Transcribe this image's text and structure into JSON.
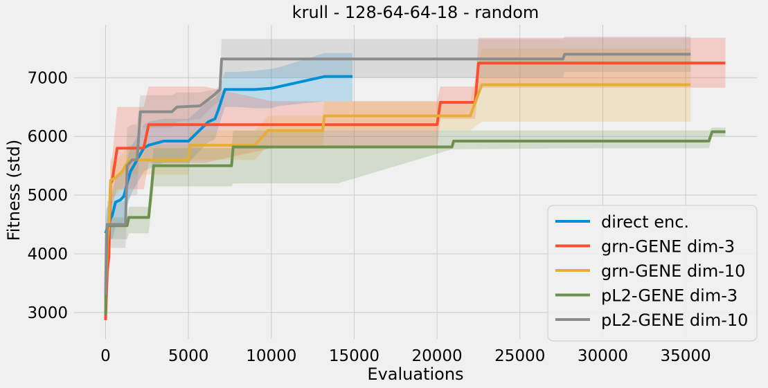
{
  "chart_data": {
    "type": "line",
    "title": "krull - 128-64-64-18 - random",
    "xlabel": "Evaluations",
    "ylabel": "Fitness (std)",
    "xlim": [
      -1900,
      39300
    ],
    "ylim": [
      2550,
      7900
    ],
    "xticks": [
      0,
      5000,
      10000,
      15000,
      20000,
      25000,
      30000,
      35000
    ],
    "yticks": [
      3000,
      4000,
      5000,
      6000,
      7000
    ],
    "grid": true,
    "legend_position": "lower-right",
    "series": [
      {
        "name": "direct enc.",
        "color": "#008fd5",
        "x": [
          0,
          50,
          100,
          200,
          300,
          400,
          600,
          900,
          1100,
          1300,
          1500,
          2300,
          2600,
          3500,
          5000,
          6200,
          6600,
          6800,
          7200,
          8000,
          9000,
          10000,
          10500,
          13200,
          14900
        ],
        "y": [
          4350,
          4400,
          4450,
          4500,
          4600,
          4650,
          4880,
          4920,
          4980,
          5200,
          5400,
          5800,
          5850,
          5920,
          5920,
          6250,
          6300,
          6450,
          6800,
          6800,
          6800,
          6820,
          6850,
          7020,
          7020
        ],
        "band_upper": [
          4600,
          4750,
          4800,
          4850,
          4950,
          5050,
          5300,
          5350,
          5400,
          5600,
          5800,
          6200,
          6250,
          6300,
          6300,
          6600,
          6650,
          6750,
          7100,
          7100,
          7120,
          7150,
          7180,
          7420,
          7420
        ],
        "band_lower": [
          4100,
          4050,
          4100,
          4150,
          4250,
          4250,
          4450,
          4500,
          4550,
          4800,
          5000,
          5400,
          5450,
          5550,
          5550,
          5900,
          5950,
          6150,
          6500,
          6500,
          6480,
          6480,
          6520,
          6600,
          6600
        ]
      },
      {
        "name": "grn-GENE dim-3",
        "color": "#fc4f30",
        "x": [
          0,
          100,
          200,
          300,
          400,
          700,
          1200,
          2300,
          2600,
          4000,
          6000,
          10000,
          15000,
          20000,
          20200,
          22300,
          22500,
          30000,
          37400
        ],
        "y": [
          2870,
          3700,
          3950,
          5200,
          5250,
          5800,
          5800,
          5800,
          6200,
          6200,
          6200,
          6200,
          6200,
          6200,
          6580,
          6580,
          7250,
          7250,
          7250
        ],
        "band_upper": [
          3000,
          4100,
          4300,
          5600,
          5650,
          6500,
          6500,
          6500,
          6850,
          6850,
          6850,
          6600,
          6600,
          6600,
          6850,
          6850,
          7680,
          7680,
          7680
        ],
        "band_lower": [
          2750,
          3300,
          3600,
          4800,
          4850,
          5100,
          5100,
          5100,
          5550,
          5550,
          5550,
          5800,
          5800,
          5800,
          6300,
          6300,
          6830,
          6830,
          6830
        ]
      },
      {
        "name": "grn-GENE dim-10",
        "color": "#e5ae38",
        "x": [
          0,
          100,
          200,
          300,
          600,
          1000,
          1400,
          2000,
          5000,
          5100,
          9000,
          9800,
          13100,
          13200,
          22000,
          22700,
          30000,
          35300
        ],
        "y": [
          3200,
          4200,
          4500,
          5250,
          5300,
          5400,
          5600,
          5600,
          5600,
          5850,
          5850,
          6100,
          6100,
          6350,
          6350,
          6880,
          6880,
          6880
        ],
        "band_upper": [
          3450,
          4550,
          4850,
          5550,
          5600,
          5700,
          5850,
          5850,
          5850,
          6100,
          6100,
          6350,
          6350,
          6600,
          6600,
          7500,
          7500,
          7500
        ],
        "band_lower": [
          2950,
          3850,
          4150,
          4950,
          5000,
          5100,
          5350,
          5350,
          5350,
          5600,
          5600,
          5850,
          5850,
          6100,
          6100,
          6250,
          6250,
          6250
        ]
      },
      {
        "name": "pL2-GENE dim-3",
        "color": "#6d904f",
        "x": [
          0,
          50,
          100,
          1300,
          1400,
          2600,
          2800,
          2900,
          7600,
          7700,
          14000,
          20900,
          21000,
          30000,
          36400,
          36600,
          37400
        ],
        "y": [
          2950,
          4000,
          4480,
          4480,
          4620,
          4620,
          5200,
          5500,
          5500,
          5820,
          5820,
          5820,
          5920,
          5920,
          5920,
          6080,
          6080
        ],
        "band_upper": [
          3200,
          4300,
          4620,
          4620,
          4800,
          4800,
          5550,
          5800,
          5800,
          6100,
          6100,
          6100,
          6100,
          6100,
          6100,
          6150,
          6150
        ],
        "band_lower": [
          2700,
          3700,
          4250,
          4250,
          4350,
          4350,
          4900,
          5150,
          5150,
          5200,
          5200,
          5780,
          5780,
          5800,
          5800,
          6000,
          6000
        ]
      },
      {
        "name": "pL2-GENE dim-10",
        "color": "#8b8b8b",
        "x": [
          0,
          50,
          100,
          1200,
          1300,
          1600,
          1900,
          2100,
          4000,
          4300,
          5700,
          6600,
          6900,
          7000,
          10000,
          15000,
          20000,
          27600,
          27700,
          35300
        ],
        "y": [
          3300,
          4300,
          4500,
          4500,
          5500,
          5600,
          5600,
          6420,
          6420,
          6500,
          6520,
          6720,
          6800,
          7320,
          7320,
          7320,
          7320,
          7320,
          7400,
          7400
        ],
        "band_upper": [
          3550,
          4700,
          4900,
          4900,
          6150,
          6200,
          6200,
          6700,
          6700,
          6750,
          6750,
          6800,
          6850,
          7660,
          7660,
          7660,
          7660,
          7660,
          7700,
          7700
        ],
        "band_lower": [
          3050,
          3900,
          4100,
          4100,
          4900,
          5000,
          5000,
          6150,
          6150,
          6250,
          6300,
          6550,
          6600,
          7000,
          7000,
          7000,
          7000,
          7000,
          7100,
          7100
        ]
      }
    ]
  }
}
